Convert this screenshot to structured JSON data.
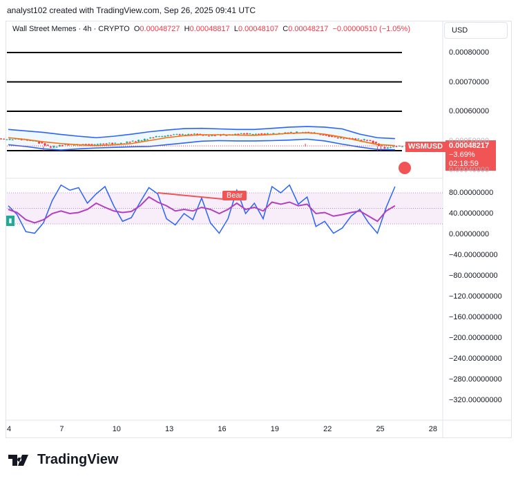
{
  "header": "analyst102 created with TradingView.com, Sep 26, 2025 09:41 UTC",
  "legend": {
    "symbol": "Wall Street Memes · 4h · CRYPTO",
    "o_label": "O",
    "o": "0.00048727",
    "h_label": "H",
    "h": "0.00048817",
    "l_label": "L",
    "l": "0.00048107",
    "c_label": "C",
    "c": "0.00048217",
    "chg": "−0.00000510 (−1.05%)"
  },
  "currency": "USD",
  "price_tag": {
    "symbol": "WSMUSD",
    "price": "0.00048217",
    "change": "−3.69%",
    "timer": "02:18:59"
  },
  "indicator_label": "Bear",
  "footer": {
    "brand": "TradingView"
  },
  "colors": {
    "candle_up": "#22ab94",
    "candle_down": "#f23645",
    "bb_band": "#2962ff",
    "bb_basis": "#ff6d00",
    "rsi_line": "#2962ff",
    "signal_line": "#b23fbf",
    "bear": "#f05454"
  },
  "chart_data": [
    {
      "type": "line",
      "title": "Wall Street Memes · 4h · CRYPTO",
      "ylim": [
        0.00046,
        0.00082
      ],
      "y_ticks": [
        "0.00080000",
        "0.00070000",
        "0.00060000",
        "0.00050000",
        "0.00040000"
      ],
      "x_ticks": [
        "4",
        "7",
        "10",
        "13",
        "16",
        "19",
        "22",
        "25",
        "28"
      ],
      "horizontal_levels": [
        0.0008,
        0.0007,
        0.0006,
        0.000466
      ],
      "series": [
        {
          "name": "upper band",
          "x": [
            4,
            5,
            6,
            7,
            8,
            9,
            10,
            11,
            12,
            13,
            14,
            15,
            16,
            17,
            18,
            19,
            20,
            21,
            22,
            23,
            24,
            25,
            26
          ],
          "values": [
            0.000538,
            0.000533,
            0.000528,
            0.000521,
            0.000515,
            0.00051,
            0.000515,
            0.000522,
            0.00053,
            0.000536,
            0.000541,
            0.000542,
            0.00054,
            0.000538,
            0.000538,
            0.000542,
            0.000546,
            0.000548,
            0.000546,
            0.00054,
            0.000522,
            0.00051,
            0.000507
          ]
        },
        {
          "name": "basis",
          "x": [
            4,
            5,
            6,
            7,
            8,
            9,
            10,
            11,
            12,
            13,
            14,
            15,
            16,
            17,
            18,
            19,
            20,
            21,
            22,
            23,
            24,
            25,
            26
          ],
          "values": [
            0.00051,
            0.000504,
            0.000496,
            0.00049,
            0.000486,
            0.000483,
            0.000486,
            0.00049,
            0.0005,
            0.00051,
            0.000517,
            0.00052,
            0.00052,
            0.000519,
            0.000518,
            0.000521,
            0.000525,
            0.000527,
            0.000522,
            0.000512,
            0.000499,
            0.000487,
            0.000483
          ]
        },
        {
          "name": "lower band",
          "x": [
            4,
            5,
            6,
            7,
            8,
            9,
            10,
            11,
            12,
            13,
            14,
            15,
            16,
            17,
            18,
            19,
            20,
            21,
            22,
            23,
            24,
            25,
            26
          ],
          "values": [
            0.000486,
            0.00048,
            0.000472,
            0.000468,
            0.000472,
            0.000475,
            0.000477,
            0.000479,
            0.00048,
            0.000486,
            0.000492,
            0.000498,
            0.0005,
            0.000499,
            0.000499,
            0.0005,
            0.000502,
            0.000505,
            0.000499,
            0.000488,
            0.000478,
            0.00047,
            0.000469
          ]
        },
        {
          "name": "close",
          "x": [
            4,
            5,
            6,
            7,
            8,
            9,
            10,
            11,
            12,
            13,
            14,
            15,
            16,
            17,
            18,
            19,
            20,
            21,
            22,
            23,
            24,
            25,
            26
          ],
          "values": [
            0.000505,
            0.0005,
            0.000478,
            0.000487,
            0.000486,
            0.00049,
            0.000491,
            0.0005,
            0.000513,
            0.00052,
            0.000522,
            0.000518,
            0.00052,
            0.000524,
            0.000522,
            0.000524,
            0.000528,
            0.000526,
            0.000512,
            0.000506,
            0.000502,
            0.000476,
            0.000482
          ]
        }
      ]
    },
    {
      "type": "line",
      "ylim": [
        -340,
        100
      ],
      "y_ticks": [
        "80.00000000",
        "40.00000000",
        "0.00000000",
        "−40.00000000",
        "−80.00000000",
        "−120.00000000",
        "−160.00000000",
        "−200.00000000",
        "−240.00000000",
        "−280.00000000",
        "−320.00000000"
      ],
      "bands": [
        20,
        50,
        80
      ],
      "series": [
        {
          "name": "oscillator",
          "x": [
            4,
            4.5,
            5,
            5.5,
            6,
            6.5,
            7,
            7.5,
            8,
            8.5,
            9,
            9.5,
            10,
            10.5,
            11,
            11.5,
            12,
            12.5,
            13,
            13.5,
            14,
            14.5,
            15,
            15.5,
            16,
            16.5,
            17,
            17.5,
            18,
            18.5,
            19,
            19.5,
            20,
            20.5,
            21,
            21.5,
            22,
            22.5,
            23,
            23.5,
            24,
            24.5,
            25,
            25.5,
            26
          ],
          "values": [
            55,
            38,
            5,
            2,
            22,
            65,
            95,
            85,
            90,
            60,
            78,
            92,
            55,
            25,
            32,
            62,
            90,
            78,
            30,
            18,
            40,
            28,
            70,
            22,
            2,
            30,
            85,
            40,
            60,
            30,
            92,
            80,
            95,
            58,
            72,
            15,
            25,
            2,
            12,
            35,
            48,
            22,
            2,
            52,
            92
          ]
        },
        {
          "name": "signal",
          "x": [
            4,
            4.5,
            5,
            5.5,
            6,
            6.5,
            7,
            7.5,
            8,
            8.5,
            9,
            9.5,
            10,
            10.5,
            11,
            11.5,
            12,
            12.5,
            13,
            13.5,
            14,
            14.5,
            15,
            15.5,
            16,
            16.5,
            17,
            17.5,
            18,
            18.5,
            19,
            19.5,
            20,
            20.5,
            21,
            21.5,
            22,
            22.5,
            23,
            23.5,
            24,
            24.5,
            25,
            25.5,
            26
          ],
          "values": [
            48,
            42,
            28,
            22,
            28,
            40,
            45,
            40,
            42,
            48,
            60,
            52,
            45,
            42,
            44,
            55,
            72,
            62,
            55,
            45,
            48,
            45,
            52,
            48,
            40,
            48,
            60,
            48,
            52,
            45,
            62,
            58,
            62,
            55,
            58,
            40,
            42,
            35,
            38,
            42,
            45,
            35,
            25,
            45,
            55
          ]
        },
        {
          "name": "bear divergence",
          "x": [
            12.5,
            16.5
          ],
          "values": [
            80,
            67
          ]
        }
      ]
    }
  ]
}
